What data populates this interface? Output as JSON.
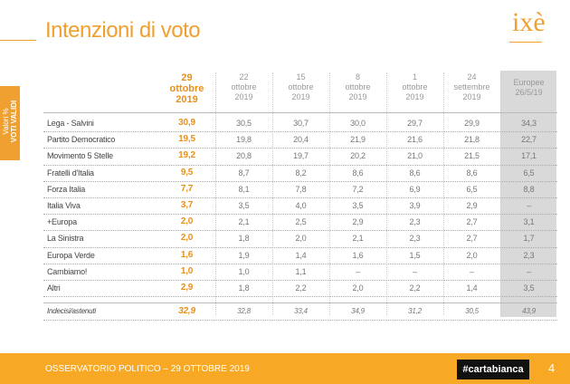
{
  "header": {
    "title": "Intenzioni di voto",
    "logo": "ixè"
  },
  "side_label": [
    "Valori %",
    "VOTI VALIDI"
  ],
  "table": {
    "columns": [
      [
        "29",
        "ottobre",
        "2019"
      ],
      [
        "22",
        "ottobre",
        "2019"
      ],
      [
        "15",
        "ottobre",
        "2019"
      ],
      [
        "8",
        "ottobre",
        "2019"
      ],
      [
        "1",
        "ottobre",
        "2019"
      ],
      [
        "24",
        "settembre",
        "2019"
      ],
      [
        "Europee",
        "26/5/19"
      ]
    ],
    "rows": [
      [
        "Lega - Salvini",
        "30,9",
        "30,5",
        "30,7",
        "30,0",
        "29,7",
        "29,9",
        "34,3"
      ],
      [
        "Partito Democratico",
        "19,5",
        "19,8",
        "20,4",
        "21,9",
        "21,6",
        "21,8",
        "22,7"
      ],
      [
        "Movimento 5 Stelle",
        "19,2",
        "20,8",
        "19,7",
        "20,2",
        "21,0",
        "21,5",
        "17,1"
      ],
      [
        "Fratelli d'Italia",
        "9,5",
        "8,7",
        "8,2",
        "8,6",
        "8,6",
        "8,6",
        "6,5"
      ],
      [
        "Forza Italia",
        "7,7",
        "8,1",
        "7,8",
        "7,2",
        "6,9",
        "6,5",
        "8,8"
      ],
      [
        "Italia Viva",
        "3,7",
        "3,5",
        "4,0",
        "3,5",
        "3,9",
        "2,9",
        "–"
      ],
      [
        "+Europa",
        "2,0",
        "2,1",
        "2,5",
        "2,9",
        "2,3",
        "2,7",
        "3,1"
      ],
      [
        "La Sinistra",
        "2,0",
        "1,8",
        "2,0",
        "2,1",
        "2,3",
        "2,7",
        "1,7"
      ],
      [
        "Europa Verde",
        "1,6",
        "1,9",
        "1,4",
        "1,6",
        "1,5",
        "2,0",
        "2,3"
      ],
      [
        "Cambiamo!",
        "1,0",
        "1,0",
        "1,1",
        "–",
        "–",
        "–",
        "–"
      ],
      [
        "Altri",
        "2,9",
        "1,8",
        "2,2",
        "2,0",
        "2,2",
        "1,4",
        "3,5"
      ]
    ],
    "footer_row": [
      "Indecisi/astenuti",
      "32,9",
      "32,8",
      "33,4",
      "34,9",
      "31,2",
      "30,5",
      "43,9"
    ]
  },
  "footer": {
    "text": "OSSERVATORIO POLITICO – 29 OTTOBRE 2019",
    "brand": "#cartabianca",
    "page": "4"
  }
}
